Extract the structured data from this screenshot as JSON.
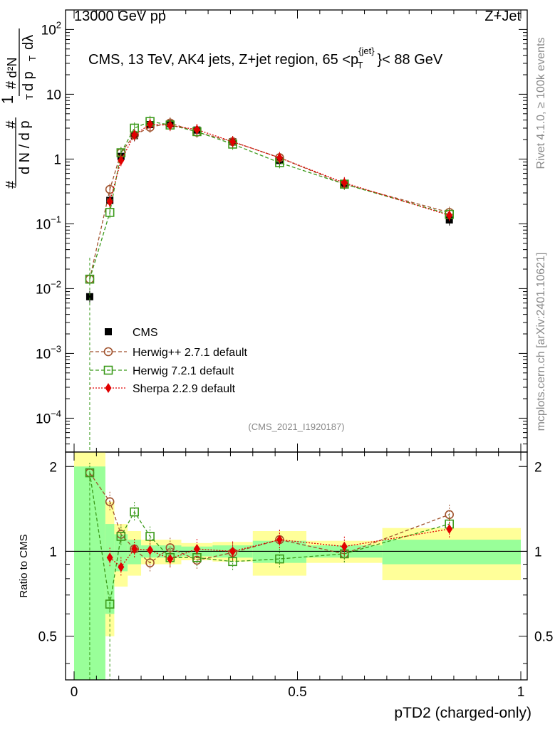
{
  "header": {
    "left": "13000 GeV pp",
    "right": "Z+Jet"
  },
  "side": {
    "rivet": "Rivet 4.1.0, ≥ 100k events",
    "mcplots": "mcplots.cern.ch [arXiv:2401.10621]"
  },
  "plot": {
    "title": "CMS, 13 TeV, AK4 jets, Z+jet region, 65 <p",
    "title_sup": "{jet}",
    "title_sub": "T",
    "title_end": "}< 88 GeV",
    "analysis_id": "(CMS_2021_I1920187)"
  },
  "ylabel_main": {
    "num1": "1",
    "den1": "d N / d p",
    "den1_sub": "T",
    "hash": "#",
    "num2": "d²N",
    "den2": "d p",
    "den2_sub": "T",
    "den2_end": "dλ"
  },
  "colors": {
    "data": "#000000",
    "herwigpp": "#a0522d",
    "herwig7": "#3a9a1a",
    "sherpa": "#e00000",
    "band_inner": "#99ff99",
    "band_outer": "#ffff99"
  },
  "chart_data": [
    {
      "type": "scatter",
      "panel": "main",
      "title": "CMS, 13 TeV, AK4 jets, Z+jet region, 65 <p_T^{jet}< 88 GeV",
      "xlabel": "pTD2 (charged-only)",
      "ylabel": "1/N dN/dpT d2N/dpT dlambda",
      "yscale": "log",
      "xlim": [
        0,
        1
      ],
      "ylim": [
        3e-05,
        200
      ],
      "yticks": [
        {
          "value": 0.0001,
          "base": "10",
          "exp": "−4"
        },
        {
          "value": 0.001,
          "base": "10",
          "exp": "−3"
        },
        {
          "value": 0.01,
          "base": "10",
          "exp": "−2"
        },
        {
          "value": 0.1,
          "base": "10",
          "exp": "−1"
        },
        {
          "value": 1,
          "base": "1",
          "exp": ""
        },
        {
          "value": 10,
          "base": "10",
          "exp": ""
        },
        {
          "value": 100,
          "base": "10",
          "exp": "2"
        }
      ],
      "legend_position": "bottom-left",
      "series": [
        {
          "name": "CMS",
          "marker": "square-filled",
          "x": [
            0.035,
            0.08,
            0.105,
            0.135,
            0.17,
            0.215,
            0.275,
            0.355,
            0.46,
            0.605,
            0.84
          ],
          "y": [
            0.0075,
            0.23,
            1.1,
            2.3,
            3.4,
            3.5,
            2.8,
            1.85,
            0.95,
            0.42,
            0.115
          ]
        },
        {
          "name": "Herwig++ 2.7.1 default",
          "marker": "circle-open",
          "line": "dashed",
          "x": [
            0.035,
            0.08,
            0.105,
            0.135,
            0.17,
            0.215,
            0.275,
            0.355,
            0.46,
            0.605,
            0.84
          ],
          "y": [
            0.014,
            0.34,
            1.25,
            2.35,
            3.1,
            3.6,
            2.6,
            1.85,
            1.05,
            0.41,
            0.15
          ]
        },
        {
          "name": "Herwig 7.2.1 default",
          "marker": "square-open",
          "line": "dashed",
          "x": [
            0.035,
            0.08,
            0.105,
            0.135,
            0.17,
            0.215,
            0.275,
            0.355,
            0.46,
            0.605,
            0.84
          ],
          "y": [
            0.014,
            0.15,
            1.25,
            3.0,
            3.8,
            3.35,
            2.65,
            1.7,
            0.88,
            0.41,
            0.14
          ]
        },
        {
          "name": "Sherpa 2.2.9 default",
          "marker": "diamond-filled",
          "line": "dotted",
          "x": [
            0.035,
            0.08,
            0.105,
            0.135,
            0.17,
            0.215,
            0.275,
            0.355,
            0.46,
            0.605,
            0.84
          ],
          "y": [
            null,
            0.22,
            0.95,
            2.35,
            3.45,
            3.3,
            2.85,
            1.85,
            1.05,
            0.43,
            0.135
          ]
        }
      ]
    },
    {
      "type": "line",
      "panel": "ratio",
      "xlabel": "pTD2 (charged-only)",
      "ylabel": "Ratio to CMS",
      "xlim": [
        0,
        1
      ],
      "ylim": [
        0.35,
        2.25
      ],
      "yticks": [
        0.5,
        1,
        2
      ],
      "xticks": [
        {
          "value": 0,
          "label": "0"
        },
        {
          "value": 0.5,
          "label": "0.5"
        },
        {
          "value": 1,
          "label": "1"
        }
      ],
      "bands": [
        {
          "x0": 0.0,
          "x1": 0.07,
          "inner": [
            0.0,
            2.0
          ],
          "outer": [
            0.0,
            2.6
          ]
        },
        {
          "x0": 0.07,
          "x1": 0.09,
          "inner": [
            0.6,
            1.25
          ],
          "outer": [
            0.5,
            1.5
          ]
        },
        {
          "x0": 0.09,
          "x1": 0.12,
          "inner": [
            0.85,
            1.15
          ],
          "outer": [
            0.75,
            1.25
          ]
        },
        {
          "x0": 0.12,
          "x1": 0.15,
          "inner": [
            0.9,
            1.1
          ],
          "outer": [
            0.82,
            1.18
          ]
        },
        {
          "x0": 0.15,
          "x1": 0.19,
          "inner": [
            0.95,
            1.05
          ],
          "outer": [
            0.9,
            1.1
          ]
        },
        {
          "x0": 0.19,
          "x1": 0.24,
          "inner": [
            0.95,
            1.05
          ],
          "outer": [
            0.9,
            1.1
          ]
        },
        {
          "x0": 0.24,
          "x1": 0.31,
          "inner": [
            0.96,
            1.04
          ],
          "outer": [
            0.93,
            1.07
          ]
        },
        {
          "x0": 0.31,
          "x1": 0.4,
          "inner": [
            0.95,
            1.05
          ],
          "outer": [
            0.92,
            1.08
          ]
        },
        {
          "x0": 0.4,
          "x1": 0.52,
          "inner": [
            0.91,
            1.09
          ],
          "outer": [
            0.82,
            1.18
          ]
        },
        {
          "x0": 0.52,
          "x1": 0.69,
          "inner": [
            0.95,
            1.05
          ],
          "outer": [
            0.91,
            1.09
          ]
        },
        {
          "x0": 0.69,
          "x1": 1.0,
          "inner": [
            0.9,
            1.1
          ],
          "outer": [
            0.79,
            1.21
          ]
        }
      ],
      "series": [
        {
          "name": "Herwig++ 2.7.1 default",
          "x": [
            0.035,
            0.08,
            0.105,
            0.135,
            0.17,
            0.215,
            0.275,
            0.355,
            0.46,
            0.605,
            0.84
          ],
          "y": [
            1.9,
            1.5,
            1.15,
            1.02,
            0.91,
            1.03,
            0.93,
            0.99,
            1.1,
            0.98,
            1.35
          ]
        },
        {
          "name": "Herwig 7.2.1 default",
          "x": [
            0.035,
            0.08,
            0.105,
            0.135,
            0.17,
            0.215,
            0.275,
            0.355,
            0.46,
            0.605,
            0.84
          ],
          "y": [
            1.9,
            0.65,
            1.13,
            1.38,
            1.13,
            0.95,
            0.95,
            0.92,
            0.94,
            0.98,
            1.25
          ]
        },
        {
          "name": "Sherpa 2.2.9 default",
          "x": [
            0.08,
            0.105,
            0.135,
            0.17,
            0.215,
            0.275,
            0.355,
            0.46,
            0.605,
            0.84
          ],
          "y": [
            0.95,
            0.88,
            1.02,
            1.01,
            0.94,
            1.02,
            1.0,
            1.1,
            1.04,
            1.2
          ]
        }
      ]
    }
  ]
}
